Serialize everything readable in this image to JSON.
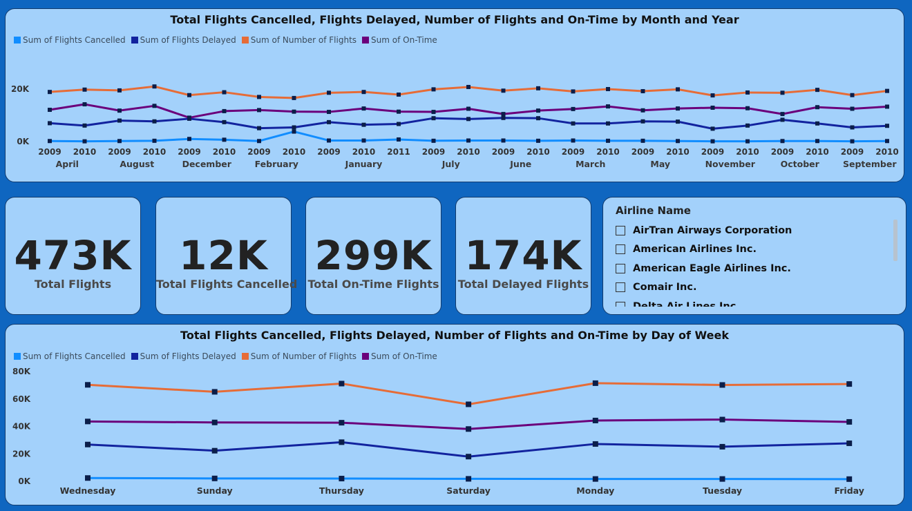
{
  "colors": {
    "cancelled": "#118dff",
    "delayed": "#12239e",
    "flights": "#e66c37",
    "ontime": "#6b007b",
    "marker": "#0b1e4a"
  },
  "top_chart": {
    "title": "Total Flights Cancelled, Flights Delayed, Number of Flights and On-Time by Month and Year",
    "legend": [
      "Sum of Flights Cancelled",
      "Sum of Flights Delayed",
      "Sum of Number of Flights",
      "Sum of On-Time"
    ]
  },
  "bottom_chart": {
    "title": "Total Flights Cancelled, Flights Delayed, Number of Flights and On-Time by Day of Week",
    "legend": [
      "Sum of Flights Cancelled",
      "Sum of Flights Delayed",
      "Sum of Number of Flights",
      "Sum of On-Time"
    ]
  },
  "kpis": [
    {
      "value": "473K",
      "label": "Total Flights"
    },
    {
      "value": "12K",
      "label": "Total Flights Cancelled"
    },
    {
      "value": "299K",
      "label": "Total On-Time Flights"
    },
    {
      "value": "174K",
      "label": "Total Delayed Flights"
    }
  ],
  "slicer": {
    "title": "Airline Name",
    "items": [
      "AirTran Airways Corporation",
      "American Airlines Inc.",
      "American Eagle Airlines Inc.",
      "Comair Inc.",
      "Delta Air Lines Inc."
    ]
  },
  "chart_data": [
    {
      "type": "line",
      "title": "Total Flights Cancelled, Flights Delayed, Number of Flights and On-Time by Month and Year",
      "x_years": [
        "2009",
        "2010",
        "2009",
        "2010",
        "2009",
        "2010",
        "2009",
        "2010",
        "2009",
        "2010",
        "2011",
        "2009",
        "2010",
        "2009",
        "2010",
        "2009",
        "2010",
        "2009",
        "2010",
        "2009",
        "2010",
        "2009",
        "2010",
        "2009",
        "2010"
      ],
      "x_groups": [
        {
          "name": "April",
          "span": 2
        },
        {
          "name": "August",
          "span": 2
        },
        {
          "name": "December",
          "span": 2
        },
        {
          "name": "February",
          "span": 2
        },
        {
          "name": "January",
          "span": 3
        },
        {
          "name": "July",
          "span": 2
        },
        {
          "name": "June",
          "span": 2
        },
        {
          "name": "March",
          "span": 2
        },
        {
          "name": "May",
          "span": 2
        },
        {
          "name": "November",
          "span": 2
        },
        {
          "name": "October",
          "span": 2
        },
        {
          "name": "September",
          "span": 2
        }
      ],
      "y_ticks": [
        "0K",
        "20K"
      ],
      "ylim": [
        0,
        25000
      ],
      "series": [
        {
          "name": "Sum of Flights Cancelled",
          "color_key": "cancelled",
          "values": [
            200,
            100,
            200,
            300,
            1000,
            700,
            200,
            3800,
            400,
            400,
            800,
            300,
            400,
            400,
            300,
            400,
            300,
            300,
            200,
            100,
            100,
            200,
            200,
            100,
            200
          ]
        },
        {
          "name": "Sum of Flights Delayed",
          "color_key": "delayed",
          "values": [
            7000,
            6100,
            8000,
            7700,
            8700,
            7400,
            5100,
            5400,
            7400,
            6400,
            6700,
            8900,
            8600,
            9000,
            8900,
            6900,
            6900,
            7700,
            7600,
            4900,
            6100,
            8300,
            6900,
            5400,
            6000
          ]
        },
        {
          "name": "Sum of Number of Flights",
          "color_key": "flights",
          "values": [
            18900,
            19800,
            19500,
            21000,
            17700,
            18800,
            17000,
            16600,
            18600,
            18900,
            17900,
            19900,
            20800,
            19400,
            20300,
            19100,
            20000,
            19200,
            19900,
            17600,
            18700,
            18600,
            19700,
            17700,
            19300
          ]
        },
        {
          "name": "Sum of On-Time",
          "color_key": "ontime",
          "values": [
            12100,
            14200,
            11800,
            13600,
            9100,
            11600,
            12000,
            11400,
            11300,
            12600,
            11400,
            11300,
            12500,
            10500,
            11800,
            12400,
            13400,
            11900,
            12600,
            12900,
            12700,
            10500,
            13100,
            12500,
            13300
          ]
        }
      ]
    },
    {
      "type": "line",
      "title": "Total Flights Cancelled, Flights Delayed, Number of Flights and On-Time by Day of Week",
      "categories": [
        "Wednesday",
        "Sunday",
        "Thursday",
        "Saturday",
        "Monday",
        "Tuesday",
        "Friday"
      ],
      "y_ticks": [
        "0K",
        "20K",
        "40K",
        "60K",
        "80K"
      ],
      "ylim": [
        0,
        80000
      ],
      "series": [
        {
          "name": "Sum of Flights Cancelled",
          "color_key": "cancelled",
          "values": [
            2400,
            2100,
            2000,
            1800,
            1700,
            1700,
            1600
          ]
        },
        {
          "name": "Sum of Flights Delayed",
          "color_key": "delayed",
          "values": [
            26800,
            22300,
            28500,
            18000,
            27200,
            25200,
            27700
          ]
        },
        {
          "name": "Sum of Number of Flights",
          "color_key": "flights",
          "values": [
            70300,
            65200,
            71200,
            56100,
            71500,
            70200,
            70900
          ]
        },
        {
          "name": "Sum of On-Time",
          "color_key": "ontime",
          "values": [
            43600,
            42900,
            42700,
            38100,
            44300,
            45000,
            43300
          ]
        }
      ]
    }
  ]
}
